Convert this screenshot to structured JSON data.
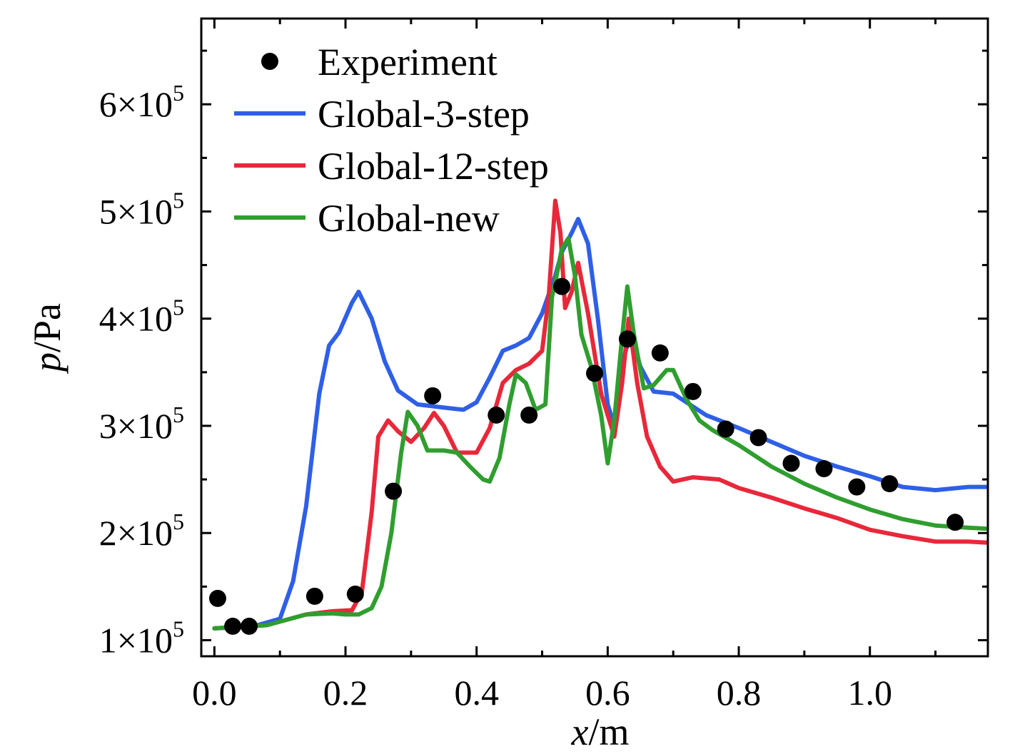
{
  "chart_data": {
    "type": "line",
    "xlabel": {
      "var": "x",
      "unit": "/m"
    },
    "ylabel": {
      "var": "p",
      "unit": "/Pa"
    },
    "xlim": [
      -0.02,
      1.18
    ],
    "ylim": [
      85000,
      680000
    ],
    "grid": false,
    "legend_position": "top-left",
    "x_ticks": [
      {
        "value": 0.0,
        "label": "0.0"
      },
      {
        "value": 0.2,
        "label": "0.2"
      },
      {
        "value": 0.4,
        "label": "0.4"
      },
      {
        "value": 0.6,
        "label": "0.6"
      },
      {
        "value": 0.8,
        "label": "0.8"
      },
      {
        "value": 1.0,
        "label": "1.0"
      }
    ],
    "y_ticks": [
      {
        "value": 100000,
        "mantissa": "1",
        "times": "×",
        "base": "10",
        "exp": "5"
      },
      {
        "value": 200000,
        "mantissa": "2",
        "times": "×",
        "base": "10",
        "exp": "5"
      },
      {
        "value": 300000,
        "mantissa": "3",
        "times": "×",
        "base": "10",
        "exp": "5"
      },
      {
        "value": 400000,
        "mantissa": "4",
        "times": "×",
        "base": "10",
        "exp": "5"
      },
      {
        "value": 500000,
        "mantissa": "5",
        "times": "×",
        "base": "10",
        "exp": "5"
      },
      {
        "value": 600000,
        "mantissa": "6",
        "times": "×",
        "base": "10",
        "exp": "5"
      }
    ],
    "scatter_series": [
      {
        "name": "Experiment",
        "color": "#000000",
        "points": [
          [
            0.005,
            139000
          ],
          [
            0.028,
            113000
          ],
          [
            0.053,
            113000
          ],
          [
            0.153,
            141000
          ],
          [
            0.215,
            143000
          ],
          [
            0.273,
            239000
          ],
          [
            0.333,
            328000
          ],
          [
            0.43,
            310000
          ],
          [
            0.48,
            310000
          ],
          [
            0.53,
            430000
          ],
          [
            0.58,
            349000
          ],
          [
            0.63,
            381000
          ],
          [
            0.68,
            368000
          ],
          [
            0.73,
            332000
          ],
          [
            0.78,
            297000
          ],
          [
            0.83,
            289000
          ],
          [
            0.88,
            265000
          ],
          [
            0.93,
            260000
          ],
          [
            0.98,
            243000
          ],
          [
            1.03,
            246000
          ],
          [
            1.13,
            210000
          ]
        ]
      }
    ],
    "line_series": [
      {
        "name": "Global-3-step",
        "color": "#2f5fe6",
        "points": [
          [
            0.0,
            111000
          ],
          [
            0.06,
            113000
          ],
          [
            0.1,
            120000
          ],
          [
            0.12,
            155000
          ],
          [
            0.14,
            225000
          ],
          [
            0.16,
            330000
          ],
          [
            0.175,
            375000
          ],
          [
            0.19,
            387000
          ],
          [
            0.21,
            415000
          ],
          [
            0.22,
            425000
          ],
          [
            0.24,
            400000
          ],
          [
            0.26,
            360000
          ],
          [
            0.28,
            333000
          ],
          [
            0.31,
            320000
          ],
          [
            0.35,
            317000
          ],
          [
            0.38,
            315000
          ],
          [
            0.4,
            322000
          ],
          [
            0.42,
            345000
          ],
          [
            0.44,
            370000
          ],
          [
            0.46,
            375000
          ],
          [
            0.48,
            382000
          ],
          [
            0.5,
            405000
          ],
          [
            0.52,
            440000
          ],
          [
            0.53,
            462000
          ],
          [
            0.545,
            480000
          ],
          [
            0.555,
            493000
          ],
          [
            0.57,
            470000
          ],
          [
            0.585,
            400000
          ],
          [
            0.6,
            320000
          ],
          [
            0.61,
            300000
          ],
          [
            0.62,
            355000
          ],
          [
            0.635,
            385000
          ],
          [
            0.65,
            355000
          ],
          [
            0.67,
            332000
          ],
          [
            0.7,
            330000
          ],
          [
            0.75,
            310000
          ],
          [
            0.8,
            298000
          ],
          [
            0.85,
            285000
          ],
          [
            0.9,
            272000
          ],
          [
            0.95,
            262000
          ],
          [
            1.0,
            253000
          ],
          [
            1.05,
            243000
          ],
          [
            1.1,
            240000
          ],
          [
            1.15,
            243000
          ],
          [
            1.18,
            243000
          ]
        ]
      },
      {
        "name": "Global-12-step",
        "color": "#e8283a",
        "points": [
          [
            0.0,
            111000
          ],
          [
            0.08,
            114000
          ],
          [
            0.14,
            124000
          ],
          [
            0.18,
            127000
          ],
          [
            0.21,
            128000
          ],
          [
            0.225,
            145000
          ],
          [
            0.24,
            220000
          ],
          [
            0.25,
            290000
          ],
          [
            0.265,
            305000
          ],
          [
            0.28,
            295000
          ],
          [
            0.3,
            285000
          ],
          [
            0.32,
            298000
          ],
          [
            0.335,
            312000
          ],
          [
            0.35,
            300000
          ],
          [
            0.37,
            275000
          ],
          [
            0.4,
            275000
          ],
          [
            0.42,
            298000
          ],
          [
            0.44,
            340000
          ],
          [
            0.46,
            352000
          ],
          [
            0.48,
            358000
          ],
          [
            0.5,
            370000
          ],
          [
            0.51,
            420000
          ],
          [
            0.52,
            510000
          ],
          [
            0.528,
            480000
          ],
          [
            0.535,
            410000
          ],
          [
            0.545,
            425000
          ],
          [
            0.555,
            452000
          ],
          [
            0.57,
            405000
          ],
          [
            0.59,
            330000
          ],
          [
            0.61,
            290000
          ],
          [
            0.622,
            340000
          ],
          [
            0.632,
            400000
          ],
          [
            0.645,
            340000
          ],
          [
            0.66,
            290000
          ],
          [
            0.68,
            262000
          ],
          [
            0.7,
            248000
          ],
          [
            0.73,
            252000
          ],
          [
            0.77,
            250000
          ],
          [
            0.8,
            242000
          ],
          [
            0.85,
            233000
          ],
          [
            0.9,
            223000
          ],
          [
            0.95,
            214000
          ],
          [
            1.0,
            203000
          ],
          [
            1.05,
            197000
          ],
          [
            1.1,
            192000
          ],
          [
            1.15,
            192000
          ],
          [
            1.18,
            191000
          ]
        ]
      },
      {
        "name": "Global-new",
        "color": "#2f9e2f",
        "points": [
          [
            0.0,
            111000
          ],
          [
            0.08,
            114000
          ],
          [
            0.14,
            124000
          ],
          [
            0.18,
            125000
          ],
          [
            0.2,
            124000
          ],
          [
            0.22,
            124000
          ],
          [
            0.24,
            130000
          ],
          [
            0.255,
            150000
          ],
          [
            0.27,
            200000
          ],
          [
            0.285,
            275000
          ],
          [
            0.295,
            313000
          ],
          [
            0.31,
            300000
          ],
          [
            0.325,
            277000
          ],
          [
            0.35,
            277000
          ],
          [
            0.37,
            275000
          ],
          [
            0.39,
            262000
          ],
          [
            0.41,
            250000
          ],
          [
            0.42,
            248000
          ],
          [
            0.435,
            270000
          ],
          [
            0.45,
            320000
          ],
          [
            0.46,
            348000
          ],
          [
            0.475,
            340000
          ],
          [
            0.49,
            315000
          ],
          [
            0.505,
            320000
          ],
          [
            0.515,
            420000
          ],
          [
            0.522,
            440000
          ],
          [
            0.53,
            465000
          ],
          [
            0.54,
            475000
          ],
          [
            0.55,
            440000
          ],
          [
            0.56,
            385000
          ],
          [
            0.575,
            355000
          ],
          [
            0.59,
            310000
          ],
          [
            0.6,
            265000
          ],
          [
            0.61,
            305000
          ],
          [
            0.62,
            370000
          ],
          [
            0.63,
            430000
          ],
          [
            0.64,
            385000
          ],
          [
            0.655,
            335000
          ],
          [
            0.67,
            338000
          ],
          [
            0.69,
            352000
          ],
          [
            0.7,
            352000
          ],
          [
            0.72,
            325000
          ],
          [
            0.74,
            305000
          ],
          [
            0.76,
            296000
          ],
          [
            0.8,
            282000
          ],
          [
            0.85,
            262000
          ],
          [
            0.9,
            246000
          ],
          [
            0.95,
            233000
          ],
          [
            1.0,
            222000
          ],
          [
            1.05,
            213000
          ],
          [
            1.1,
            207000
          ],
          [
            1.15,
            205000
          ],
          [
            1.18,
            204000
          ]
        ]
      }
    ]
  }
}
